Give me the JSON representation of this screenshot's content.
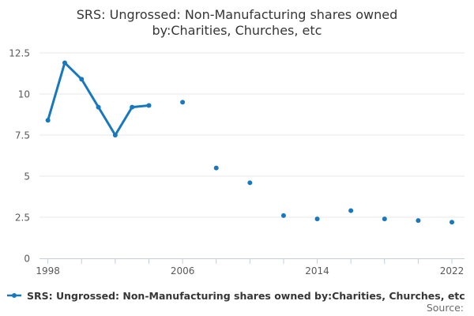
{
  "title": {
    "full": "SRS: Ungrossed: Non-Manufacturing shares owned by:Charities, Churches, etc",
    "lines": [
      "SRS: Ungrossed: Non-Manufacturing shares owned",
      "by:Charities, Churches, etc"
    ]
  },
  "legend": {
    "label": "SRS: Ungrossed: Non-Manufacturing shares owned by:Charities, Churches, etc",
    "marker": "line-with-dot"
  },
  "source_label": "Source:",
  "colors": {
    "series": "#1878be",
    "grid": "#e7e7e7",
    "axis_line": "#c6cdd4",
    "tick_mark": "#c3cfdd",
    "tick_label": "#595959",
    "title_text": "#363636",
    "legend_text": "#363636",
    "source_text": "#6b6b6b",
    "background": "#ffffff"
  },
  "chart_data": {
    "type": "line",
    "title": "SRS: Ungrossed: Non-Manufacturing shares owned by:Charities, Churches, etc",
    "xlabel": "",
    "ylabel": "",
    "series": [
      {
        "name": "SRS: Ungrossed: Non-Manufacturing shares owned by:Charities, Churches, etc",
        "x": [
          1998,
          1999,
          2000,
          2001,
          2002,
          2003,
          2004,
          2006,
          2008,
          2010,
          2012,
          2014,
          2016,
          2018,
          2020,
          2022
        ],
        "y": [
          8.4,
          11.9,
          10.9,
          9.2,
          7.5,
          9.2,
          9.3,
          9.5,
          5.5,
          4.6,
          2.6,
          2.4,
          2.9,
          2.4,
          2.3,
          2.2
        ]
      }
    ],
    "x_tick_labels": [
      "1998",
      "2006",
      "2014",
      "2022"
    ],
    "x_minor_tick_years": [
      1998,
      2000,
      2002,
      2004,
      2006,
      2008,
      2010,
      2012,
      2014,
      2016,
      2018,
      2020,
      2022
    ],
    "y_ticks": [
      "0",
      "2.5",
      "5",
      "7.5",
      "10",
      "12.5"
    ],
    "x_range": [
      1997.5,
      2022.75
    ],
    "ylim": [
      0,
      12.98
    ],
    "grid": "horizontal-only",
    "legend_position": "bottom-left",
    "marker": "circle",
    "max_connect_gap_years": 1
  }
}
